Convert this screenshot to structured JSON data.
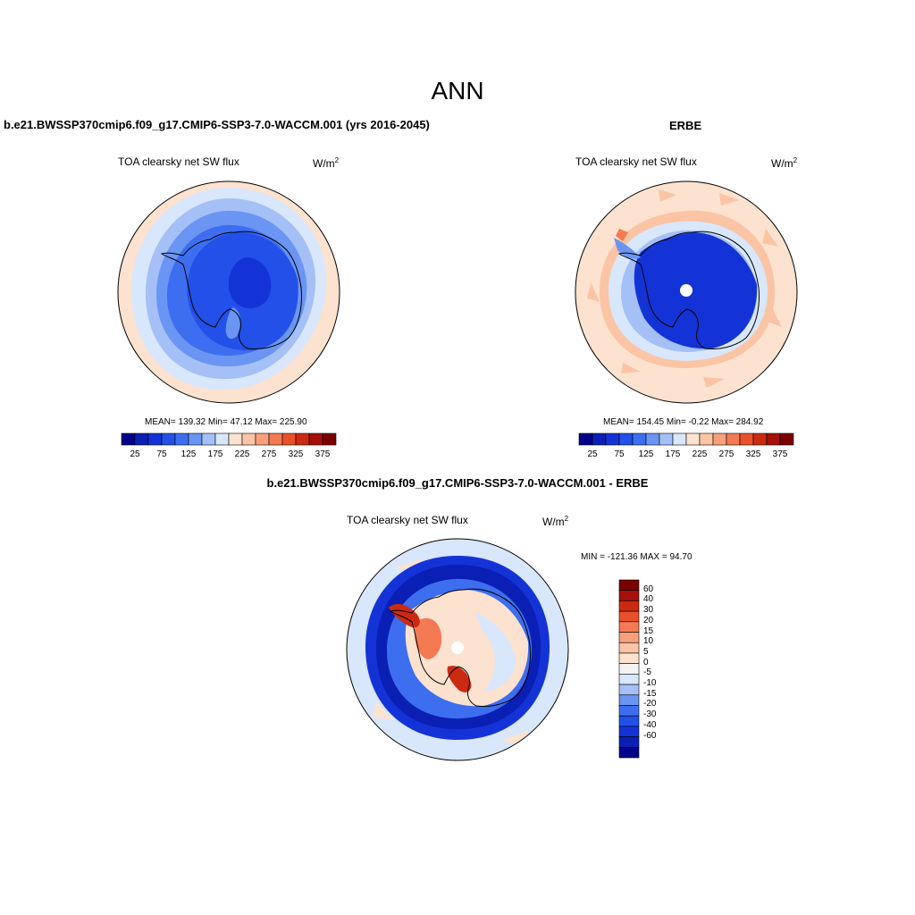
{
  "figure": {
    "season": "ANN",
    "units_base": "W/m",
    "units_exp": "2"
  },
  "panels": {
    "model": {
      "title": "b.e21.BWSSP370cmip6.f09_g17.CMIP6-SSP3-7.0-WACCM.001 (yrs 2016-2045)",
      "variable": "TOA clearsky net SW flux",
      "stats": "MEAN= 139.32  Min=  47.12  Max= 225.90",
      "colorbar_ticks": [
        "25",
        "75",
        "125",
        "175",
        "225",
        "275",
        "325",
        "375"
      ]
    },
    "obs": {
      "title": "ERBE",
      "variable": "TOA clearsky net SW flux",
      "stats": "MEAN= 154.45  Min=  -0.22  Max= 284.92",
      "colorbar_ticks": [
        "25",
        "75",
        "125",
        "175",
        "225",
        "275",
        "325",
        "375"
      ]
    },
    "diff": {
      "title": "b.e21.BWSSP370cmip6.f09_g17.CMIP6-SSP3-7.0-WACCM.001 - ERBE",
      "variable": "TOA clearsky net SW flux",
      "stats": "MIN = -121.36 MAX =  94.70",
      "colorbar_ticks": [
        "60",
        "40",
        "30",
        "20",
        "15",
        "10",
        "5",
        "0",
        "-5",
        "-10",
        "-15",
        "-20",
        "-30",
        "-40",
        "-60"
      ]
    }
  },
  "palettes": {
    "sequential": [
      "#00008b",
      "#0a1fb4",
      "#1433d6",
      "#2250e8",
      "#3d6ef0",
      "#6b95f3",
      "#a4c0f6",
      "#d8e7fb",
      "#fde2cf",
      "#fbc4a4",
      "#f8a07c",
      "#f47a54",
      "#ea5029",
      "#cc2a10",
      "#a3110a",
      "#7b0000"
    ],
    "diverging": [
      "#7b0000",
      "#a3110a",
      "#cc2a10",
      "#ea5029",
      "#f47a54",
      "#f8a07c",
      "#fbc4a4",
      "#fde2cf",
      "#f4f4f4",
      "#d8e7fb",
      "#a4c0f6",
      "#6b95f3",
      "#3d6ef0",
      "#2250e8",
      "#1433d6",
      "#0a1fb4",
      "#00008b"
    ]
  }
}
